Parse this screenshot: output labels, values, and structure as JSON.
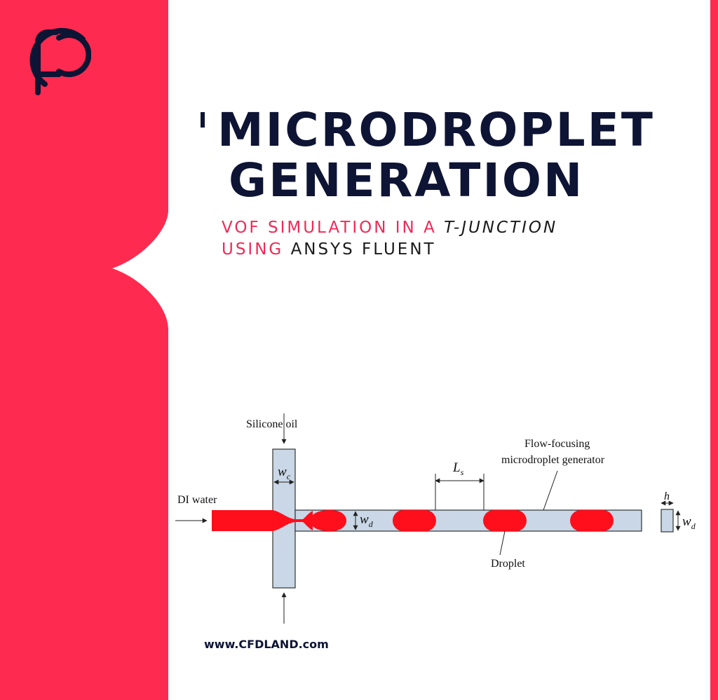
{
  "brand": {
    "accent_color": "#ff2a4f",
    "navy_color": "#0d1434",
    "logo_icon": "cfd-logo-icon"
  },
  "title": {
    "line1": "MICRODROPLET",
    "line2": "GENERATION"
  },
  "subtitle": {
    "part1": "VOF SIMULATION IN A",
    "part2": "T-JUNCTION",
    "part3": "USING",
    "part4": "ANSYS FLUENT"
  },
  "diagram": {
    "silicone_oil": "Silicone oil",
    "di_water": "DI water",
    "wc_var": "w",
    "wc_sub": "c",
    "wd_var": "w",
    "wd_sub": "d",
    "ls_var": "L",
    "ls_sub": "s",
    "h_var": "h",
    "flow_focusing_line1": "Flow-focusing",
    "flow_focusing_line2": "microdroplet generator",
    "droplet": "Droplet",
    "channel_color": "#c9d7e6",
    "droplet_color": "#ff0e1c"
  },
  "footer": {
    "url": "www.CFDLAND.com"
  }
}
